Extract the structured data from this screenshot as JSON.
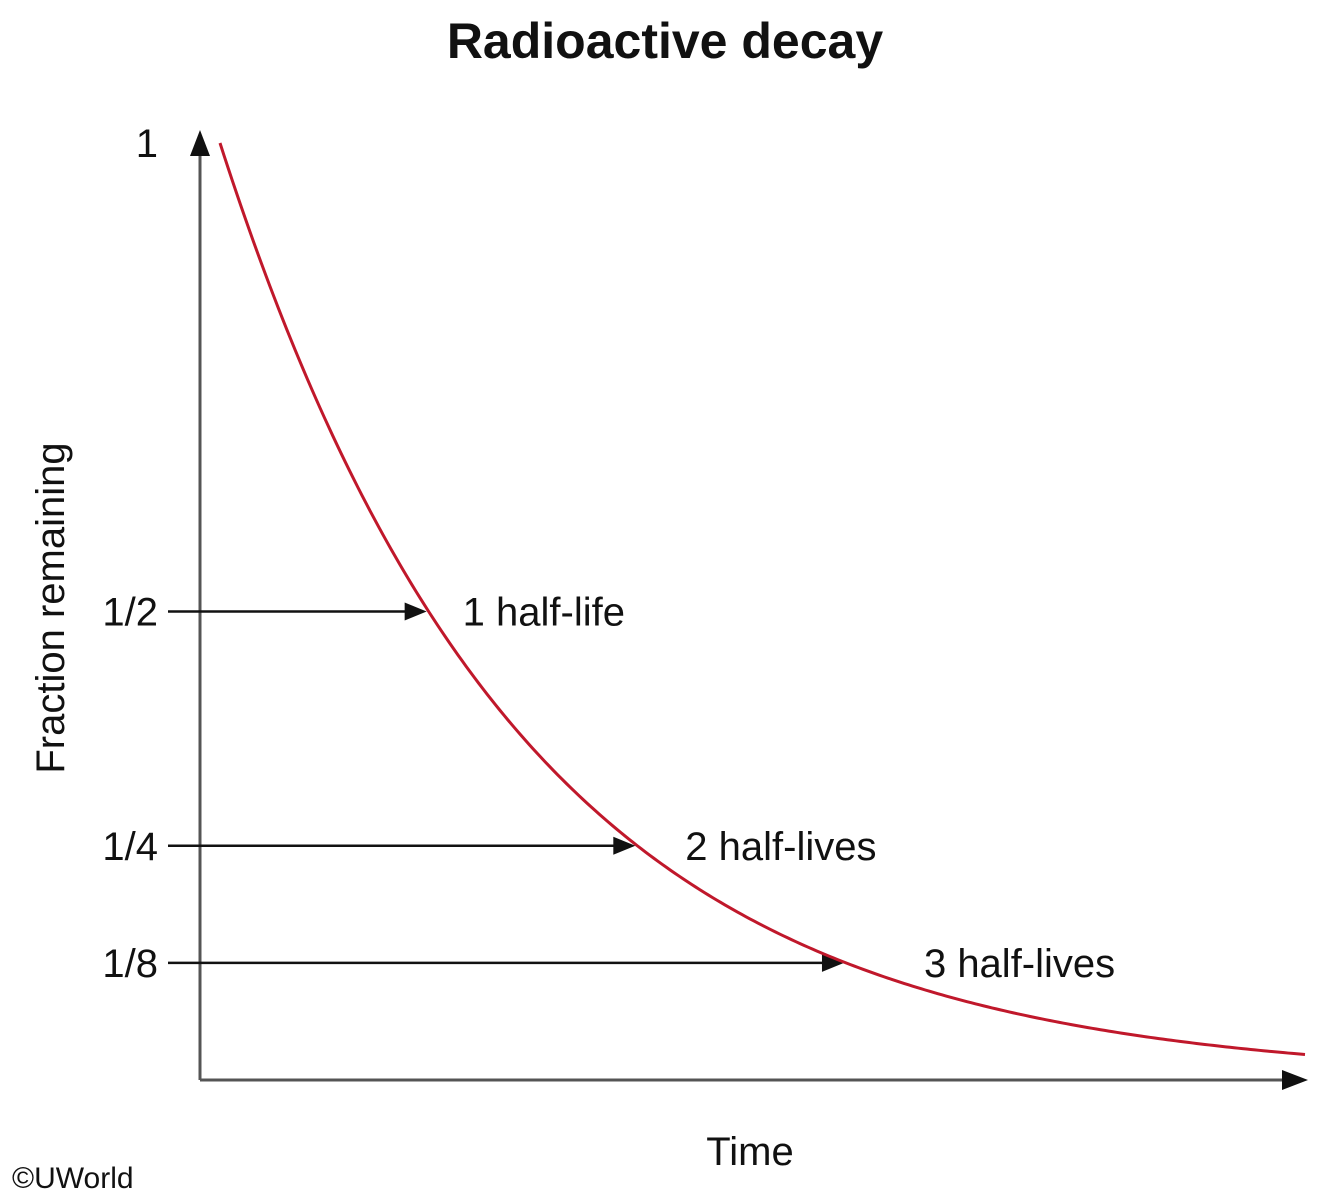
{
  "chart_data": {
    "type": "line",
    "title": "Radioactive decay",
    "xlabel": "Time",
    "ylabel": "Fraction remaining",
    "x_unit": "half-lives",
    "xlim": [
      0,
      5.2
    ],
    "ylim": [
      0,
      1
    ],
    "yticks": [
      {
        "value": 1,
        "label": "1"
      },
      {
        "value": 0.5,
        "label": "1/2"
      },
      {
        "value": 0.25,
        "label": "1/4"
      },
      {
        "value": 0.125,
        "label": "1/8"
      }
    ],
    "series": [
      {
        "color": "#c0182b",
        "x": [
          0,
          0.25,
          0.5,
          0.75,
          1,
          1.25,
          1.5,
          1.75,
          2,
          2.25,
          2.5,
          2.75,
          3,
          3.25,
          3.5,
          3.75,
          4,
          4.25,
          4.5,
          4.75,
          5,
          5.2
        ],
        "y": [
          1,
          0.841,
          0.707,
          0.595,
          0.5,
          0.42,
          0.354,
          0.297,
          0.25,
          0.21,
          0.177,
          0.149,
          0.125,
          0.105,
          0.088,
          0.074,
          0.063,
          0.053,
          0.044,
          0.037,
          0.031,
          0.027
        ]
      }
    ],
    "annotations": [
      {
        "x": 1,
        "y": 0.5,
        "text": "1 half-life"
      },
      {
        "x": 2,
        "y": 0.25,
        "text": "2 half-lives"
      },
      {
        "x": 3,
        "y": 0.125,
        "text": "3 half-lives"
      }
    ],
    "axis_color": "#555555",
    "arrow_color": "#111111",
    "grid": false,
    "legend": "none"
  },
  "copyright": "©UWorld"
}
